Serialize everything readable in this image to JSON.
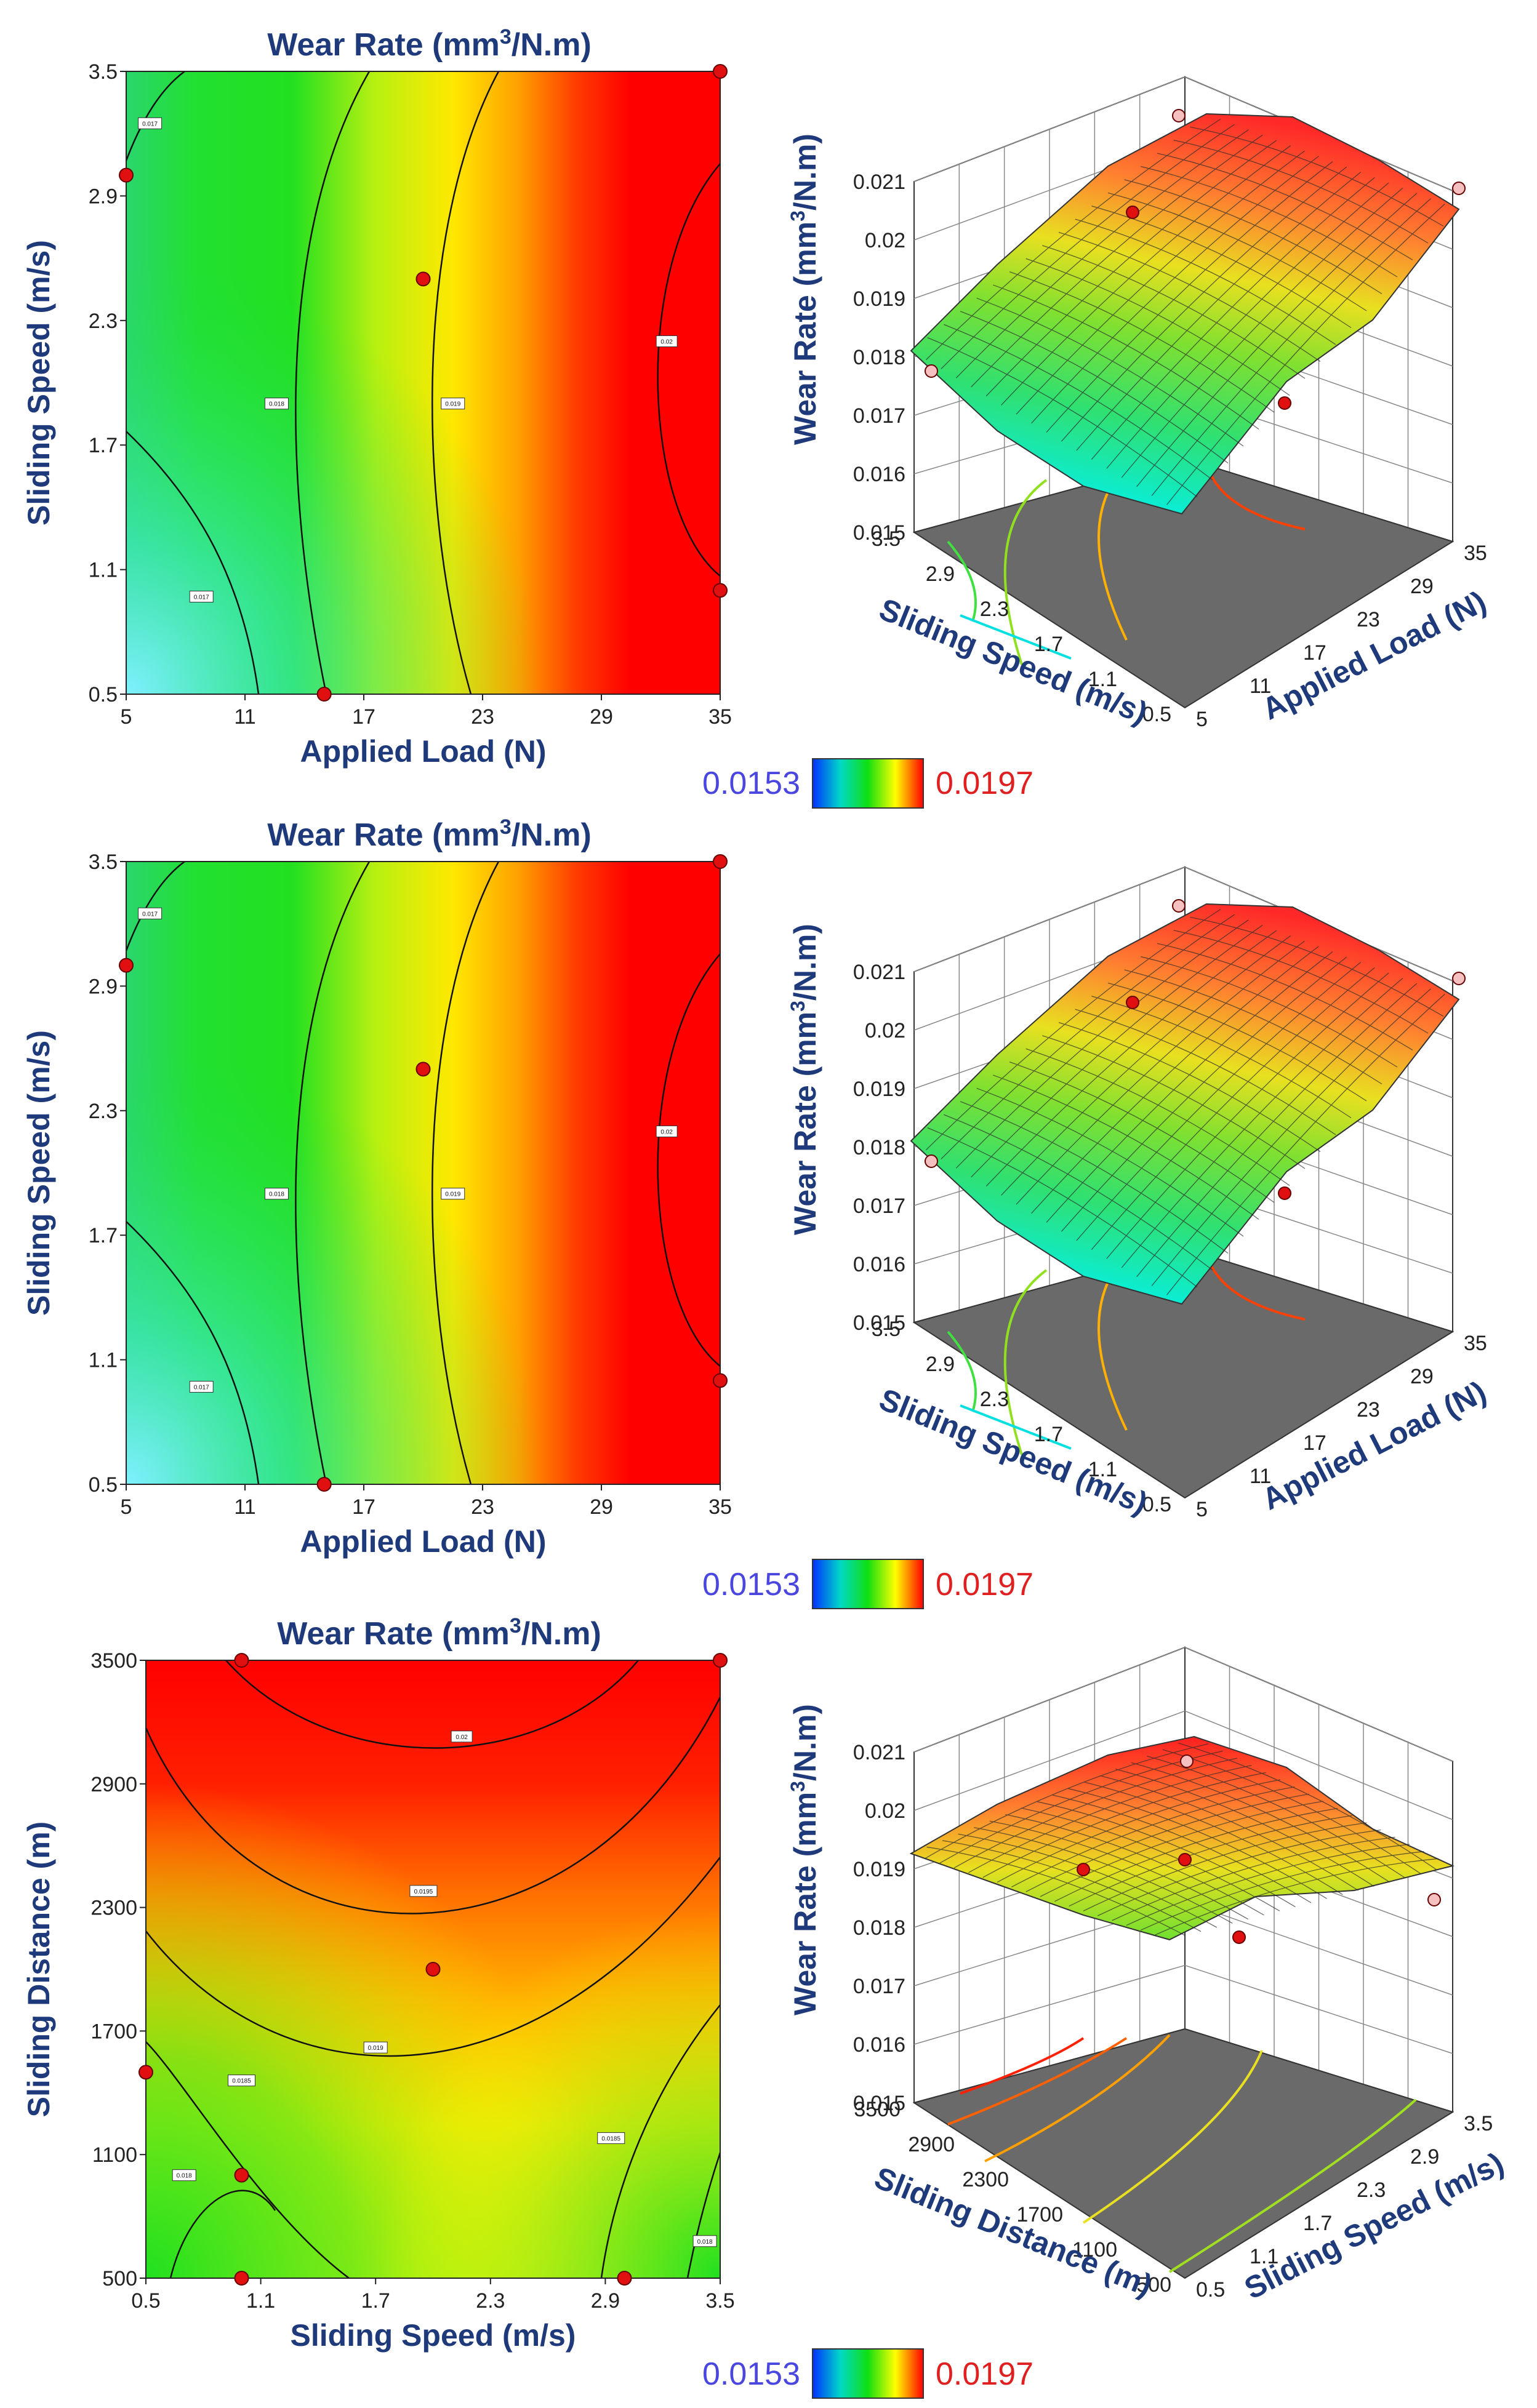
{
  "colorbar": {
    "min_label": "0.0153",
    "max_label": "0.0197",
    "min": 0.0153,
    "max": 0.0197
  },
  "colors": {
    "title": "#1f3a7a",
    "point": "#e01010",
    "floor": "#6a6a6a"
  },
  "chart_data": [
    {
      "type": "contour",
      "panel": 1,
      "title": "Wear Rate (mm³/N.m)",
      "xlabel": "Applied Load (N)",
      "ylabel": "Sliding Speed (m/s)",
      "xlim": [
        5,
        35
      ],
      "ylim": [
        0.5,
        3.5
      ],
      "xticks": [
        "5",
        "11",
        "17",
        "23",
        "29",
        "35"
      ],
      "yticks": [
        "0.5",
        "1.1",
        "1.7",
        "2.3",
        "2.9",
        "3.5"
      ],
      "contour_labels": [
        {
          "text": "0.017",
          "x": 6.2,
          "y": 3.25
        },
        {
          "text": "0.018",
          "x": 12.6,
          "y": 1.9
        },
        {
          "text": "0.019",
          "x": 21.5,
          "y": 1.9
        },
        {
          "text": "0.02",
          "x": 32.3,
          "y": 2.2
        },
        {
          "text": "0.017",
          "x": 8.8,
          "y": 0.97
        }
      ],
      "points": [
        [
          5,
          3.0
        ],
        [
          20,
          2.5
        ],
        [
          35,
          3.5
        ],
        [
          35,
          1.0
        ],
        [
          15,
          0.5
        ]
      ]
    },
    {
      "type": "surface3d",
      "panel": 1,
      "zlabel": "Wear Rate (mm³/N.m)",
      "xlabel": "Sliding Speed (m/s)",
      "ylabel": "Applied Load (N)",
      "zticks": [
        "0.015",
        "0.016",
        "0.017",
        "0.018",
        "0.019",
        "0.02",
        "0.021"
      ],
      "xticks": [
        "0.5",
        "1.1",
        "1.7",
        "2.3",
        "2.9",
        "3.5"
      ],
      "yticks": [
        "5",
        "11",
        "17",
        "23",
        "29",
        "35"
      ]
    },
    {
      "type": "contour",
      "panel": 2,
      "title": "Wear Rate (mm³/N.m)",
      "xlabel": "Applied Load (N)",
      "ylabel": "Sliding Speed (m/s)",
      "xlim": [
        5,
        35
      ],
      "ylim": [
        0.5,
        3.5
      ],
      "xticks": [
        "5",
        "11",
        "17",
        "23",
        "29",
        "35"
      ],
      "yticks": [
        "0.5",
        "1.1",
        "1.7",
        "2.3",
        "2.9",
        "3.5"
      ],
      "contour_labels": [
        {
          "text": "0.017",
          "x": 6.2,
          "y": 3.25
        },
        {
          "text": "0.018",
          "x": 12.6,
          "y": 1.9
        },
        {
          "text": "0.019",
          "x": 21.5,
          "y": 1.9
        },
        {
          "text": "0.02",
          "x": 32.3,
          "y": 2.2
        },
        {
          "text": "0.017",
          "x": 8.8,
          "y": 0.97
        }
      ],
      "points": [
        [
          5,
          3.0
        ],
        [
          20,
          2.5
        ],
        [
          35,
          3.5
        ],
        [
          35,
          1.0
        ],
        [
          15,
          0.5
        ]
      ]
    },
    {
      "type": "surface3d",
      "panel": 2,
      "zlabel": "Wear Rate (mm³/N.m)",
      "xlabel": "Sliding Speed (m/s)",
      "ylabel": "Applied Load (N)",
      "zticks": [
        "0.015",
        "0.016",
        "0.017",
        "0.018",
        "0.019",
        "0.02",
        "0.021"
      ],
      "xticks": [
        "0.5",
        "1.1",
        "1.7",
        "2.3",
        "2.9",
        "3.5"
      ],
      "yticks": [
        "5",
        "11",
        "17",
        "23",
        "29",
        "35"
      ]
    },
    {
      "type": "contour",
      "panel": 3,
      "title": "Wear Rate (mm³/N.m)",
      "xlabel": "Sliding Speed (m/s)",
      "ylabel": "Sliding Distance (m)",
      "xlim": [
        0.5,
        3.5
      ],
      "ylim": [
        500,
        3500
      ],
      "xticks": [
        "0.5",
        "1.1",
        "1.7",
        "2.3",
        "2.9",
        "3.5"
      ],
      "yticks": [
        "500",
        "1100",
        "1700",
        "2300",
        "2900",
        "3500"
      ],
      "contour_labels": [
        {
          "text": "0.02",
          "x": 2.15,
          "y": 3130
        },
        {
          "text": "0.0195",
          "x": 1.95,
          "y": 2380
        },
        {
          "text": "0.019",
          "x": 1.7,
          "y": 1620
        },
        {
          "text": "0.0185",
          "x": 1.0,
          "y": 1460
        },
        {
          "text": "0.018",
          "x": 0.7,
          "y": 1000
        },
        {
          "text": "0.0185",
          "x": 2.93,
          "y": 1180
        },
        {
          "text": "0.018",
          "x": 3.42,
          "y": 680
        }
      ],
      "points": [
        [
          1.0,
          3500
        ],
        [
          3.5,
          3500
        ],
        [
          2.0,
          2000
        ],
        [
          0.5,
          1500
        ],
        [
          1.0,
          1000
        ],
        [
          1.0,
          500
        ],
        [
          3.0,
          500
        ]
      ]
    },
    {
      "type": "surface3d",
      "panel": 3,
      "zlabel": "Wear Rate (mm³/N.m)",
      "xlabel": "Sliding Distance (m)",
      "ylabel": "Sliding Speed (m/s)",
      "zticks": [
        "0.015",
        "0.016",
        "0.017",
        "0.018",
        "0.019",
        "0.02",
        "0.021"
      ],
      "xticks": [
        "500",
        "1100",
        "1700",
        "2300",
        "2900",
        "3500"
      ],
      "yticks": [
        "0.5",
        "1.1",
        "1.7",
        "2.3",
        "2.9",
        "3.5"
      ]
    }
  ]
}
